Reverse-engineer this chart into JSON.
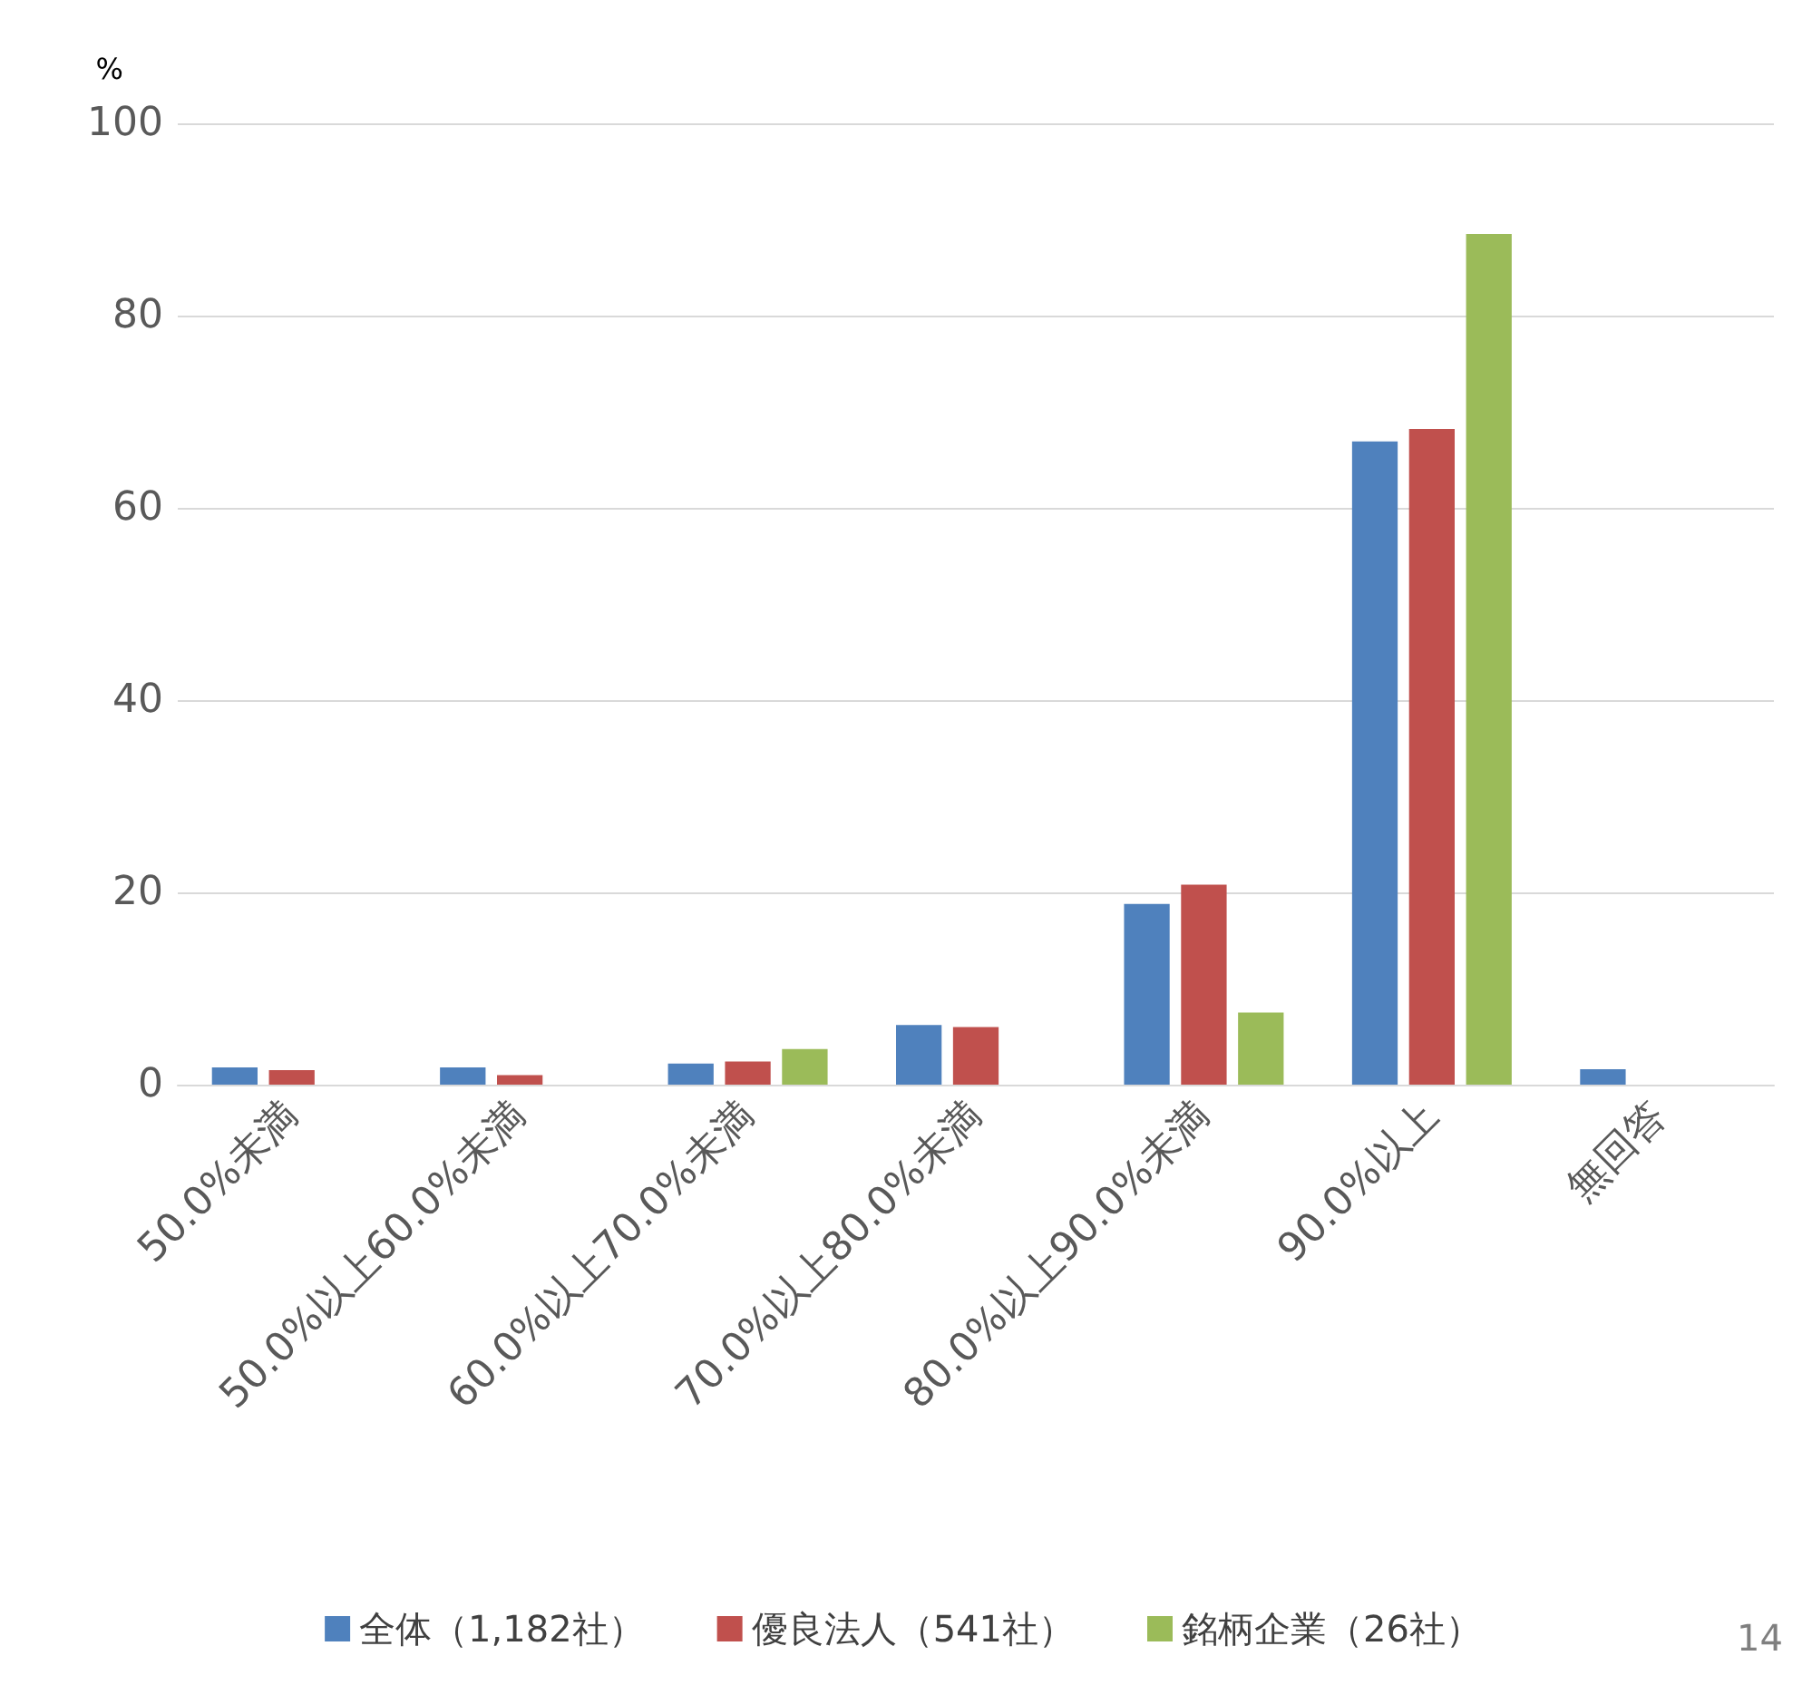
{
  "chart_data": {
    "type": "bar",
    "ylabel": "%",
    "categories": [
      "50.0%未満",
      "50.0%以上60.0%未満",
      "60.0%以上70.0%未満",
      "70.0%以上80.0%未満",
      "80.0%以上90.0%未満",
      "90.0%以上",
      "無回答"
    ],
    "series": [
      {
        "name": "全体（1,182社）",
        "color": "#4f81bd",
        "values": [
          1.8,
          1.8,
          2.2,
          6.2,
          18.8,
          66.9,
          1.6
        ]
      },
      {
        "name": "優良法人（541社）",
        "color": "#c0504d",
        "values": [
          1.5,
          1.0,
          2.4,
          6.0,
          20.8,
          68.2,
          null
        ]
      },
      {
        "name": "銘柄企業（26社）",
        "color": "#9bbb59",
        "values": [
          null,
          null,
          3.7,
          null,
          7.5,
          88.5,
          null
        ]
      }
    ],
    "ylim": [
      0,
      100
    ],
    "yticks": [
      0,
      20,
      40,
      60,
      80,
      100
    ],
    "grid": "y",
    "legend": "bottom",
    "annotations": [
      "14"
    ]
  }
}
